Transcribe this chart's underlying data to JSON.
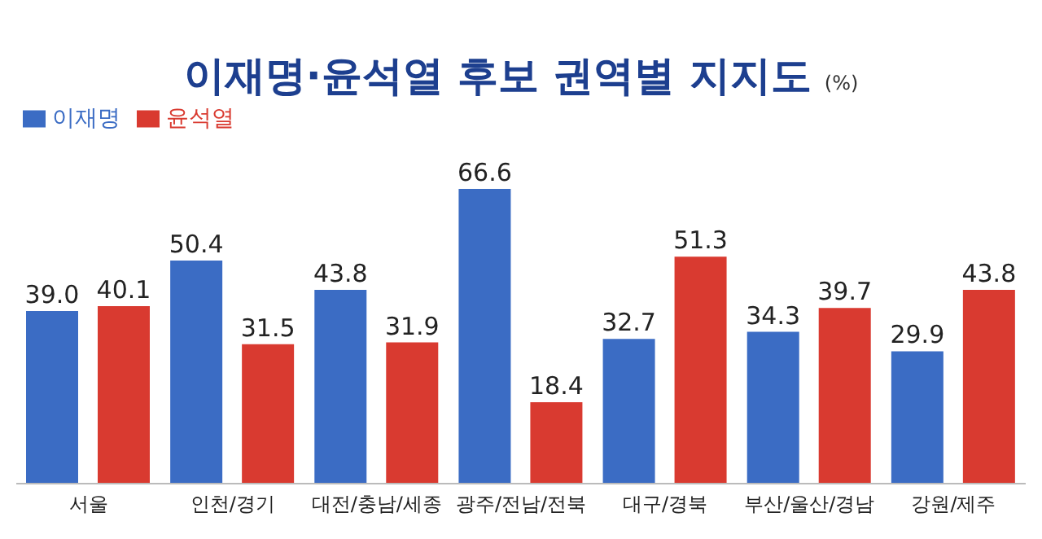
{
  "chart_data": {
    "type": "bar",
    "title": "이재명·윤석열 후보 권역별 지지도",
    "subtitle": "(%)",
    "categories": [
      "서울",
      "인천/경기",
      "대전/충남/세종",
      "광주/전남/전북",
      "대구/경북",
      "부산/울산/경남",
      "강원/제주"
    ],
    "series": [
      {
        "name": "이재명",
        "color": "#3b6cc4",
        "values": [
          39.0,
          50.4,
          43.8,
          66.6,
          32.7,
          34.3,
          29.9
        ],
        "value_labels": [
          "39.0",
          "50.4",
          "43.8",
          "66.6",
          "32.7",
          "34.3",
          "29.9"
        ]
      },
      {
        "name": "윤석열",
        "color": "#d93a30",
        "values": [
          40.1,
          31.5,
          31.9,
          18.4,
          51.3,
          39.7,
          43.8
        ],
        "value_labels": [
          "40.1",
          "31.5",
          "31.9",
          "18.4",
          "51.3",
          "39.7",
          "43.8"
        ]
      }
    ],
    "legend": "top left",
    "grid": false
  }
}
